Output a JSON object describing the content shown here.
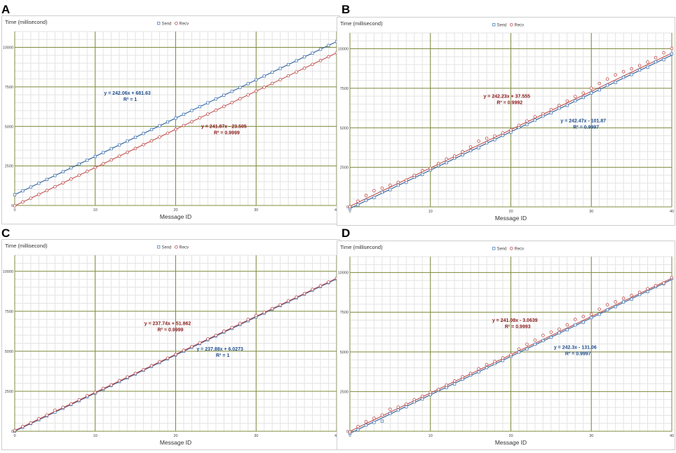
{
  "chart_data": [
    {
      "type": "scatter",
      "panel_label": "A",
      "ylabel": "Time (millisecond)",
      "xlabel": "Message ID",
      "xlim": [
        0,
        40
      ],
      "ylim": [
        0,
        11000
      ],
      "x_ticks": [
        0,
        10,
        20,
        30,
        40
      ],
      "y_ticks": [
        0,
        2500,
        5000,
        7500,
        10000
      ],
      "x_minor_step": 1,
      "y_minor_step": 500,
      "grid": true,
      "legend_position": "top-center",
      "series": [
        {
          "name": "Send",
          "marker": "square",
          "color": "#4f81bd",
          "line_color": "#2f5f9a",
          "slope": 242.06,
          "intercept": 681.63,
          "noise": [],
          "equation": "y = 242.06x + 681.63",
          "r2": "R² = 1",
          "eq_color": "#1f4e8c",
          "eq_at": [
            14,
            7000
          ]
        },
        {
          "name": "Recv",
          "marker": "circle",
          "color": "#c0504d",
          "line_color": "#c0504d",
          "slope": 241.87,
          "intercept": -23.505,
          "noise": [],
          "equation": "y = 241.87x - 23.505",
          "r2": "R² = 0.9999",
          "eq_color": "#8b1a1a",
          "eq_at": [
            26,
            4900
          ]
        }
      ]
    },
    {
      "type": "scatter",
      "panel_label": "B",
      "ylabel": "Time (millisecond)",
      "xlabel": "Message ID",
      "xlim": [
        0,
        40
      ],
      "ylim": [
        0,
        11000
      ],
      "x_ticks": [
        0,
        10,
        20,
        30,
        40
      ],
      "y_ticks": [
        0,
        2500,
        5000,
        7500,
        10000
      ],
      "x_minor_step": 1,
      "y_minor_step": 500,
      "grid": true,
      "legend_position": "top-center",
      "series": [
        {
          "name": "Send",
          "marker": "square",
          "color": "#4f81bd",
          "line_color": "#2f5f9a",
          "slope": 242.47,
          "intercept": -101.87,
          "noise": [
            0,
            -20,
            30,
            -40,
            60,
            -30,
            20,
            -50,
            40,
            -30,
            10,
            40,
            -20,
            30,
            -10,
            20,
            -40,
            30,
            -20,
            10,
            -30,
            40,
            -20,
            10,
            30,
            -20,
            40,
            -30,
            20,
            -10,
            30,
            -20,
            40,
            -30,
            50,
            -20,
            30,
            -40,
            60,
            -50,
            80
          ],
          "equation": "y = 242.47x - 101.87",
          "r2": "R² = 0.9997",
          "eq_color": "#1f4e8c",
          "eq_at": [
            29,
            5350
          ]
        },
        {
          "name": "Recv",
          "marker": "circle",
          "color": "#c0504d",
          "line_color": "#c0504d",
          "slope": 242.23,
          "intercept": 37.555,
          "noise": [
            -30,
            80,
            200,
            260,
            180,
            120,
            60,
            -40,
            20,
            80,
            -20,
            40,
            80,
            30,
            60,
            120,
            240,
            180,
            80,
            40,
            -20,
            30,
            60,
            90,
            40,
            60,
            80,
            120,
            160,
            140,
            200,
            260,
            300,
            320,
            280,
            220,
            180,
            160,
            200,
            260,
            300
          ],
          "equation": "y = 242.23x + 37.555",
          "r2": "R² = 0.9992",
          "eq_color": "#8b1a1a",
          "eq_at": [
            19.5,
            6900
          ]
        }
      ]
    },
    {
      "type": "scatter",
      "panel_label": "C",
      "ylabel": "Time (millisecond)",
      "xlabel": "Message ID",
      "xlim": [
        0,
        40
      ],
      "ylim": [
        0,
        11000
      ],
      "x_ticks": [
        0,
        10,
        20,
        30,
        40
      ],
      "y_ticks": [
        0,
        2500,
        5000,
        7500,
        10000
      ],
      "x_minor_step": 1,
      "y_minor_step": 500,
      "grid": true,
      "legend_position": "top-center",
      "series": [
        {
          "name": "Send",
          "marker": "square",
          "color": "#4f81bd",
          "line_color": "#2f5f9a",
          "slope": 237.88,
          "intercept": 6.0273,
          "noise": [],
          "equation": "y = 237.88x + 6.0273",
          "r2": "R² = 1",
          "eq_color": "#1f4e8c",
          "eq_at": [
            25.5,
            5050
          ]
        },
        {
          "name": "Recv",
          "marker": "circle",
          "color": "#c0504d",
          "line_color": "#c0504d",
          "slope": 237.74,
          "intercept": 51.862,
          "noise": [
            0,
            10,
            -10,
            20,
            10,
            80,
            20,
            -10,
            10,
            30,
            0,
            10,
            -10,
            20,
            10,
            0,
            -10,
            10,
            20,
            0,
            -10,
            20,
            10,
            0,
            10,
            -10,
            20,
            10,
            30,
            40,
            60,
            20,
            10,
            0,
            20,
            10,
            -10,
            20,
            10,
            0,
            10
          ],
          "equation": "y = 237.74x + 51.862",
          "r2": "R² = 0.9999",
          "eq_color": "#8b1a1a",
          "eq_at": [
            19,
            6650
          ]
        }
      ]
    },
    {
      "type": "scatter",
      "panel_label": "D",
      "ylabel": "Time (millisecond)",
      "xlabel": "Message ID",
      "xlim": [
        0,
        40
      ],
      "ylim": [
        0,
        11000
      ],
      "x_ticks": [
        0,
        10,
        20,
        30,
        40
      ],
      "y_ticks": [
        0,
        2500,
        5000,
        7500,
        10000
      ],
      "x_minor_step": 1,
      "y_minor_step": 500,
      "grid": true,
      "legend_position": "top-center",
      "series": [
        {
          "name": "Send",
          "marker": "square",
          "color": "#4f81bd",
          "line_color": "#2f5f9a",
          "slope": 242.3,
          "intercept": -131.06,
          "noise": [
            0,
            -20,
            30,
            -40,
            -200,
            40,
            20,
            -30,
            40,
            -20,
            10,
            30,
            -20,
            -40,
            20,
            30,
            -10,
            20,
            40,
            -20,
            10,
            30,
            -20,
            40,
            20,
            -10,
            30,
            -20,
            40,
            -30,
            20,
            -10,
            30,
            -20,
            40,
            -30,
            20,
            -40,
            30,
            -20,
            60
          ],
          "equation": "y = 242.3x - 131.06",
          "r2": "R² = 0.9997",
          "eq_color": "#1f4e8c",
          "eq_at": [
            28,
            5200
          ]
        },
        {
          "name": "Recv",
          "marker": "circle",
          "color": "#c0504d",
          "line_color": "#c0504d",
          "slope": 241.08,
          "intercept": -3.0639,
          "noise": [
            -40,
            60,
            120,
            100,
            60,
            180,
            80,
            20,
            60,
            30,
            40,
            -10,
            20,
            40,
            60,
            30,
            80,
            100,
            60,
            40,
            10,
            120,
            180,
            200,
            260,
            220,
            160,
            200,
            300,
            240,
            140,
            220,
            260,
            200,
            180,
            120,
            80,
            60,
            20,
            -60,
            40
          ],
          "equation": "y = 241.08x - 3.0639",
          "r2": "R² = 0.9993",
          "eq_color": "#8b1a1a",
          "eq_at": [
            20.5,
            6900
          ]
        }
      ]
    }
  ]
}
